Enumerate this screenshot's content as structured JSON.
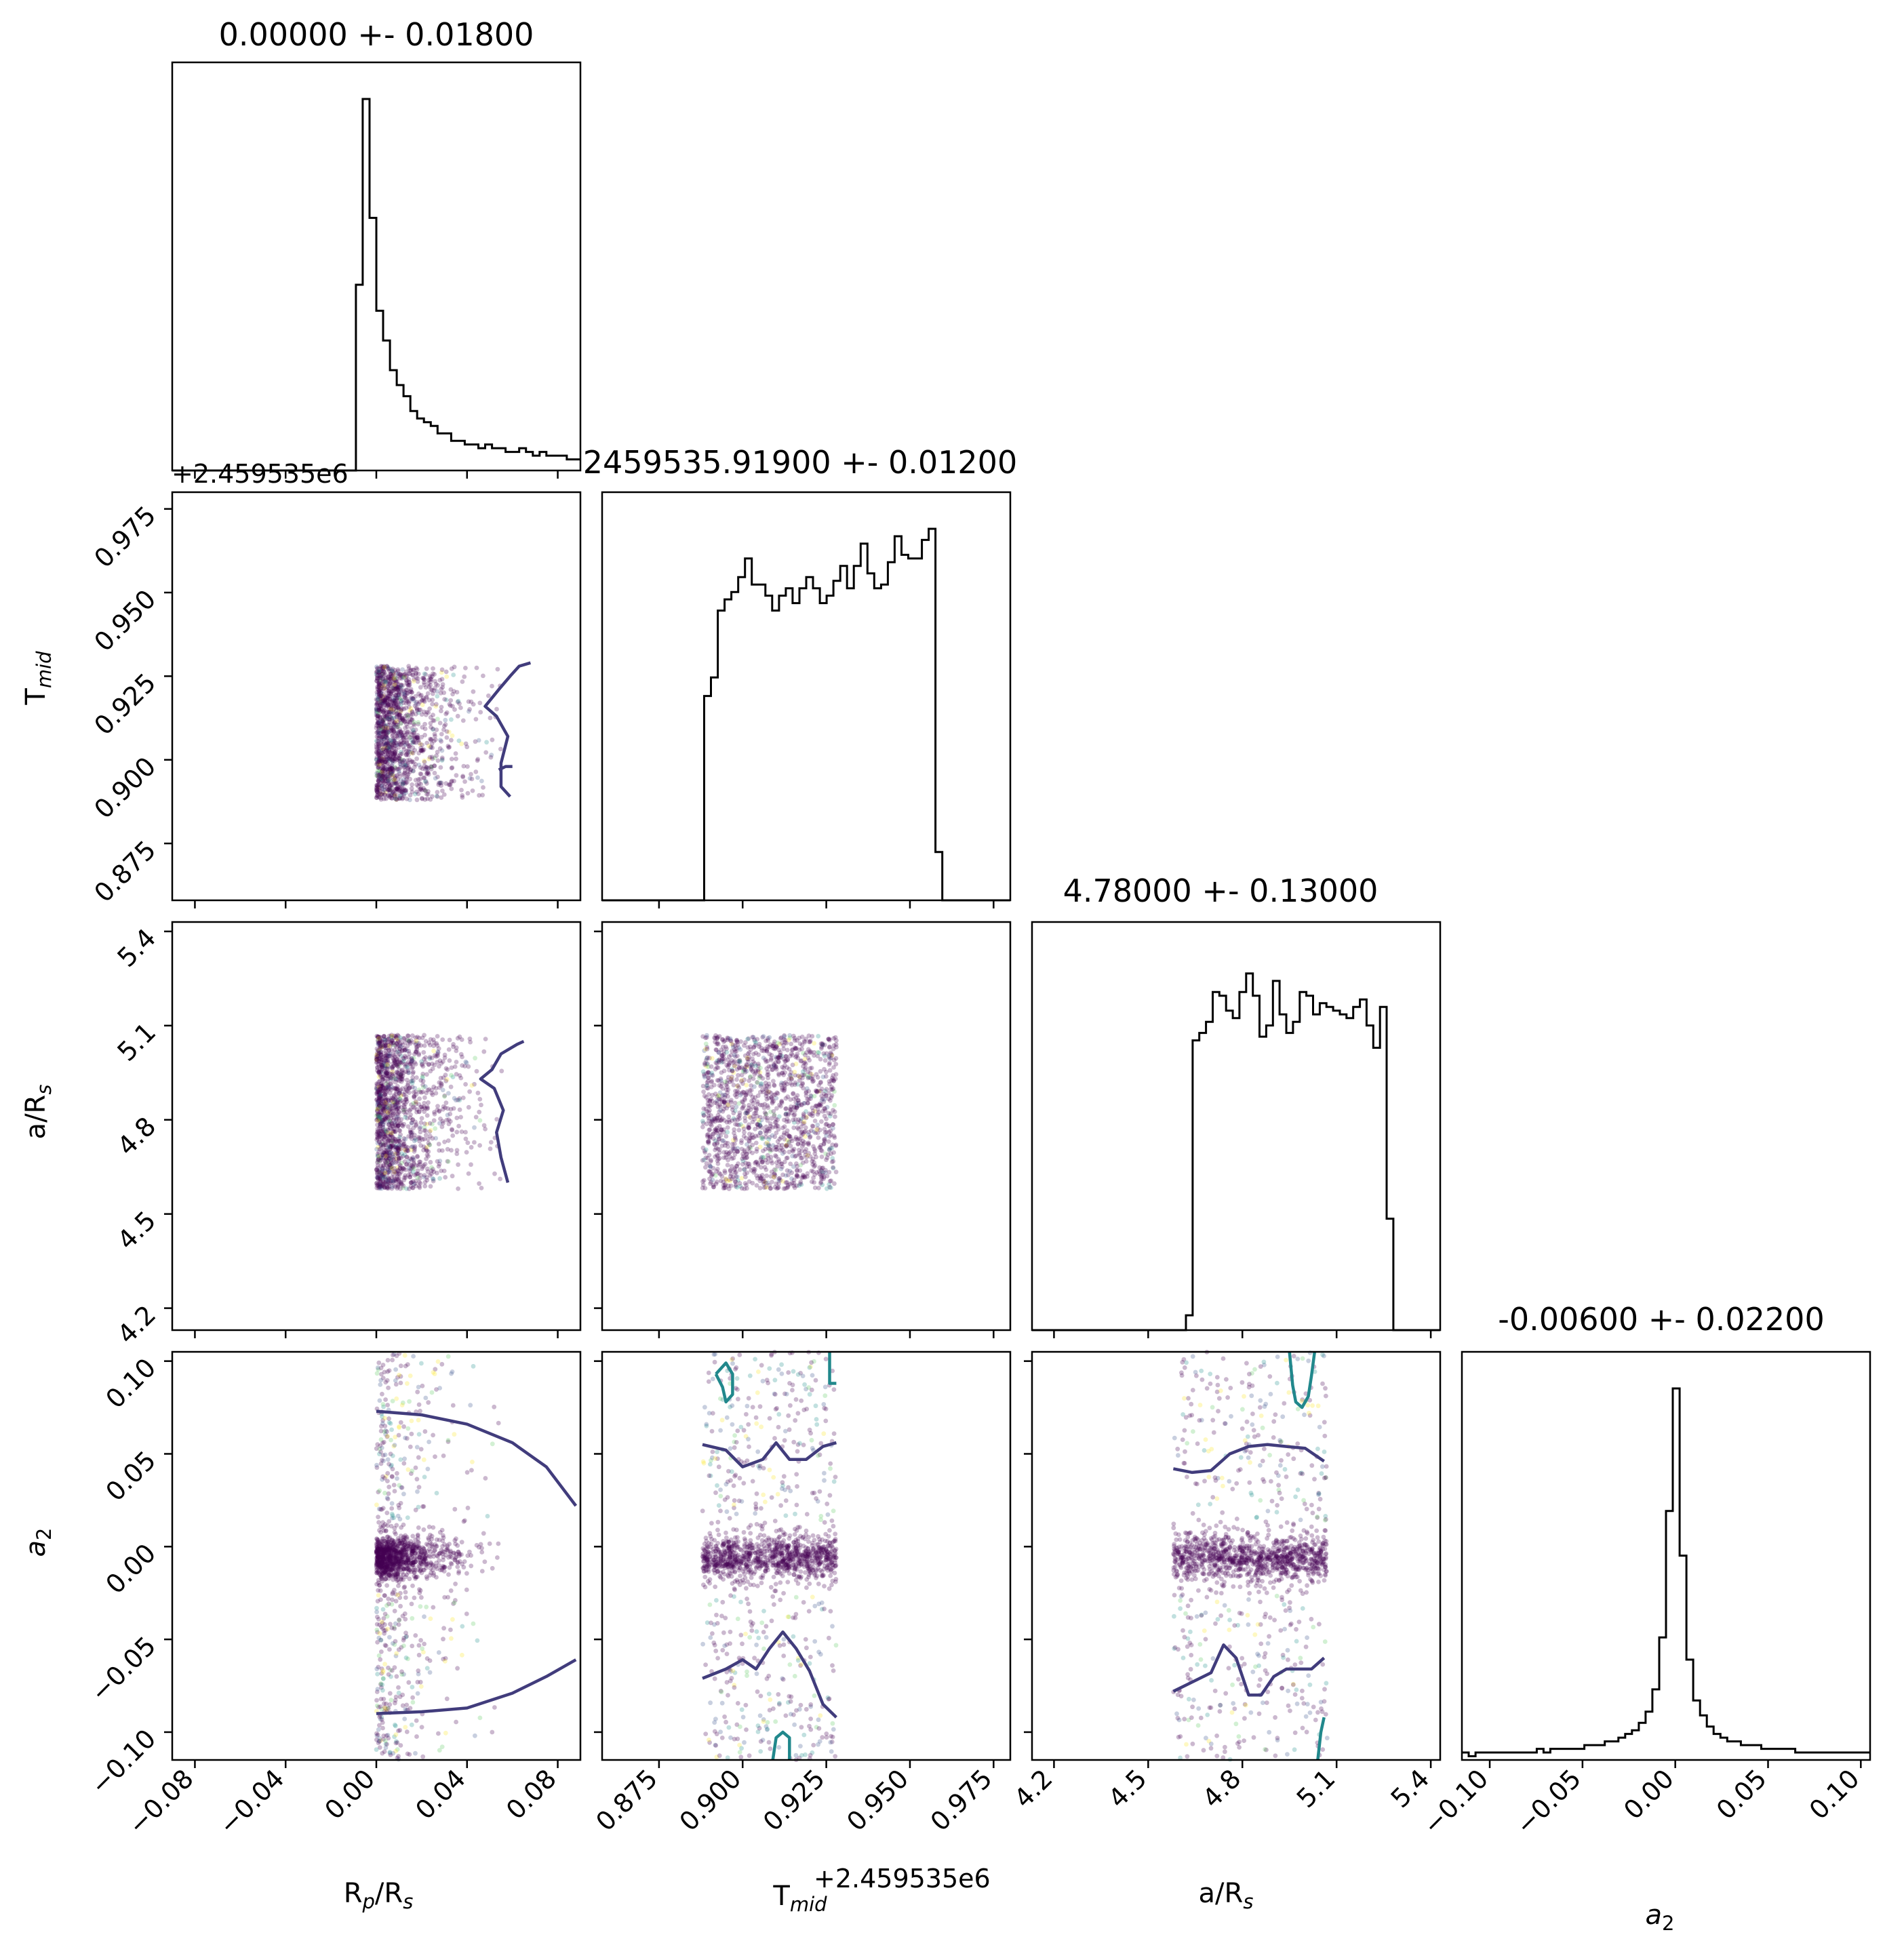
{
  "chart_data": {
    "type": "scatter",
    "parameters": [
      {
        "id": "rp",
        "label": "R",
        "sub_a": "p",
        "mid": "/R",
        "sub_b": "s",
        "title": "0.00000 +- 0.01800",
        "range": [
          -0.09,
          0.09
        ],
        "ticks": [
          -0.08,
          -0.04,
          0.0,
          0.04,
          0.08
        ],
        "tick_labels": [
          "−0.08",
          "−0.04",
          "0.00",
          "0.04",
          "0.08"
        ]
      },
      {
        "id": "tmid",
        "label": "T",
        "sub_a": "mid",
        "mid": "",
        "sub_b": "",
        "title": "2459535.91900 +- 0.01200",
        "range": [
          0.858,
          0.98
        ],
        "ticks": [
          0.875,
          0.9,
          0.925,
          0.95,
          0.975
        ],
        "tick_labels": [
          "0.875",
          "0.900",
          "0.925",
          "0.950",
          "0.975"
        ],
        "offset": "+2.459535e6"
      },
      {
        "id": "ars",
        "label": "a/R",
        "sub_a": "s",
        "mid": "",
        "sub_b": "",
        "title": "4.78000 +- 0.13000",
        "range": [
          4.13,
          5.43
        ],
        "ticks": [
          4.2,
          4.5,
          4.8,
          5.1,
          5.4
        ],
        "tick_labels": [
          "4.2",
          "4.5",
          "4.8",
          "5.1",
          "5.4"
        ]
      },
      {
        "id": "a2",
        "label": "a",
        "sub_a": "2",
        "mid": "",
        "sub_b": "",
        "title": "-0.00600 +- 0.02200",
        "range": [
          -0.115,
          0.105
        ],
        "ticks": [
          -0.1,
          -0.05,
          0.0,
          0.05,
          0.1
        ],
        "tick_labels": [
          "−0.10",
          "−0.05",
          "0.00",
          "0.05",
          "0.10"
        ]
      }
    ],
    "hist_heights": {
      "rp": [
        0,
        0,
        0,
        0,
        0,
        0,
        0,
        0,
        0,
        0,
        0,
        0,
        0,
        0,
        0,
        0,
        0,
        0,
        0,
        0,
        0,
        0,
        0,
        0,
        0,
        0,
        0,
        0.5,
        1.0,
        0.68,
        0.43,
        0.35,
        0.27,
        0.23,
        0.2,
        0.16,
        0.14,
        0.13,
        0.12,
        0.1,
        0.1,
        0.08,
        0.08,
        0.07,
        0.07,
        0.06,
        0.07,
        0.06,
        0.06,
        0.05,
        0.05,
        0.06,
        0.05,
        0.04,
        0.05,
        0.04,
        0.04,
        0.04,
        0.03,
        0.03
      ],
      "tmid": [
        0,
        0,
        0,
        0,
        0,
        0,
        0,
        0,
        0,
        0,
        0,
        0,
        0,
        0,
        0,
        0.55,
        0.6,
        0.78,
        0.81,
        0.83,
        0.87,
        0.92,
        0.85,
        0.85,
        0.82,
        0.78,
        0.82,
        0.84,
        0.8,
        0.84,
        0.87,
        0.84,
        0.8,
        0.82,
        0.86,
        0.9,
        0.84,
        0.9,
        0.96,
        0.88,
        0.84,
        0.85,
        0.91,
        0.98,
        0.93,
        0.92,
        0.92,
        0.97,
        1.0,
        0.13,
        0,
        0,
        0,
        0,
        0,
        0,
        0,
        0,
        0,
        0
      ],
      "ars": [
        0,
        0,
        0,
        0,
        0,
        0,
        0,
        0,
        0,
        0,
        0,
        0,
        0,
        0,
        0,
        0,
        0,
        0,
        0,
        0,
        0,
        0,
        0,
        0.04,
        0.78,
        0.8,
        0.83,
        0.91,
        0.9,
        0.86,
        0.84,
        0.91,
        0.96,
        0.9,
        0.79,
        0.82,
        0.94,
        0.85,
        0.8,
        0.83,
        0.91,
        0.9,
        0.85,
        0.88,
        0.87,
        0.86,
        0.85,
        0.84,
        0.87,
        0.89,
        0.82,
        0.76,
        0.87,
        0.3,
        0,
        0,
        0,
        0,
        0,
        0,
        0
      ],
      "a2": [
        0.02,
        0.01,
        0.02,
        0.02,
        0.02,
        0.02,
        0.02,
        0.02,
        0.02,
        0.02,
        0.02,
        0.03,
        0.02,
        0.03,
        0.03,
        0.03,
        0.03,
        0.03,
        0.04,
        0.04,
        0.04,
        0.05,
        0.05,
        0.06,
        0.07,
        0.08,
        0.1,
        0.13,
        0.19,
        0.33,
        0.67,
        1.0,
        0.55,
        0.27,
        0.16,
        0.12,
        0.09,
        0.07,
        0.06,
        0.05,
        0.05,
        0.04,
        0.04,
        0.04,
        0.03,
        0.03,
        0.03,
        0.03,
        0.03,
        0.02,
        0.02,
        0.02,
        0.02,
        0.02,
        0.02,
        0.02,
        0.02,
        0.02,
        0.02,
        0.02
      ]
    },
    "contours": {
      "rp_tmid": [
        [
          [
            0.059,
            0.889
          ],
          [
            0.055,
            0.892
          ],
          [
            0.055,
            0.899
          ],
          [
            0.058,
            0.907
          ],
          [
            0.053,
            0.913
          ],
          [
            0.048,
            0.916
          ],
          [
            0.054,
            0.921
          ],
          [
            0.059,
            0.925
          ],
          [
            0.063,
            0.928
          ],
          [
            0.068,
            0.929
          ]
        ],
        [
          [
            0.054,
            0.897
          ],
          [
            0.057,
            0.898
          ],
          [
            0.06,
            0.898
          ]
        ]
      ],
      "rp_ars": [
        [
          [
            0.058,
            4.6
          ],
          [
            0.055,
            4.68
          ],
          [
            0.053,
            4.76
          ],
          [
            0.056,
            4.83
          ],
          [
            0.052,
            4.9
          ],
          [
            0.046,
            4.93
          ],
          [
            0.051,
            4.96
          ],
          [
            0.055,
            5.01
          ],
          [
            0.062,
            5.04
          ],
          [
            0.065,
            5.05
          ]
        ]
      ],
      "rp_a2": [
        [
          [
            0.0,
            0.073
          ],
          [
            0.02,
            0.071
          ],
          [
            0.04,
            0.066
          ],
          [
            0.06,
            0.056
          ],
          [
            0.075,
            0.043
          ],
          [
            0.088,
            0.022
          ]
        ],
        [
          [
            0.0,
            -0.09
          ],
          [
            0.02,
            -0.089
          ],
          [
            0.04,
            -0.087
          ],
          [
            0.06,
            -0.079
          ],
          [
            0.075,
            -0.07
          ],
          [
            0.088,
            -0.061
          ]
        ]
      ],
      "tmid_a2": [
        [
          [
            0.888,
            0.055
          ],
          [
            0.895,
            0.052
          ],
          [
            0.9,
            0.043
          ],
          [
            0.906,
            0.047
          ],
          [
            0.91,
            0.056
          ],
          [
            0.914,
            0.047
          ],
          [
            0.919,
            0.047
          ],
          [
            0.924,
            0.054
          ],
          [
            0.928,
            0.056
          ]
        ],
        [
          [
            0.888,
            -0.071
          ],
          [
            0.895,
            -0.066
          ],
          [
            0.9,
            -0.061
          ],
          [
            0.904,
            -0.066
          ],
          [
            0.908,
            -0.055
          ],
          [
            0.912,
            -0.046
          ],
          [
            0.916,
            -0.055
          ],
          [
            0.92,
            -0.067
          ],
          [
            0.924,
            -0.085
          ],
          [
            0.928,
            -0.092
          ]
        ]
      ],
      "tmid_a2_outer": [
        [
          [
            0.892,
            0.093
          ],
          [
            0.894,
            0.086
          ],
          [
            0.895,
            0.078
          ],
          [
            0.897,
            0.082
          ],
          [
            0.897,
            0.093
          ],
          [
            0.895,
            0.099
          ],
          [
            0.892,
            0.093
          ]
        ],
        [
          [
            0.926,
            0.105
          ],
          [
            0.926,
            0.088
          ],
          [
            0.928,
            0.088
          ]
        ],
        [
          [
            0.909,
            -0.115
          ],
          [
            0.91,
            -0.103
          ],
          [
            0.912,
            -0.1
          ],
          [
            0.914,
            -0.103
          ],
          [
            0.914,
            -0.115
          ]
        ]
      ],
      "ars_a2": [
        [
          [
            4.58,
            0.042
          ],
          [
            4.64,
            0.04
          ],
          [
            4.7,
            0.041
          ],
          [
            4.76,
            0.05
          ],
          [
            4.82,
            0.054
          ],
          [
            4.88,
            0.055
          ],
          [
            4.94,
            0.054
          ],
          [
            5.0,
            0.053
          ],
          [
            5.06,
            0.046
          ]
        ],
        [
          [
            4.58,
            -0.078
          ],
          [
            4.64,
            -0.073
          ],
          [
            4.7,
            -0.068
          ],
          [
            4.74,
            -0.053
          ],
          [
            4.78,
            -0.06
          ],
          [
            4.82,
            -0.08
          ],
          [
            4.86,
            -0.08
          ],
          [
            4.9,
            -0.07
          ],
          [
            4.94,
            -0.066
          ],
          [
            4.98,
            -0.066
          ],
          [
            5.02,
            -0.066
          ],
          [
            5.06,
            -0.06
          ]
        ]
      ],
      "ars_a2_outer": [
        [
          [
            4.95,
            0.105
          ],
          [
            4.96,
            0.087
          ],
          [
            4.97,
            0.078
          ],
          [
            4.99,
            0.075
          ],
          [
            5.01,
            0.081
          ],
          [
            5.02,
            0.092
          ],
          [
            5.03,
            0.105
          ]
        ],
        [
          [
            5.04,
            -0.115
          ],
          [
            5.05,
            -0.1
          ],
          [
            5.06,
            -0.092
          ]
        ]
      ]
    },
    "colors": {
      "contour_inner": "#413c7c",
      "contour_outer": "#21888c",
      "points": [
        "#440154",
        "#3b528b",
        "#21918c",
        "#5ec962",
        "#fde725"
      ],
      "hist": "#000000",
      "frame": "#000000"
    }
  }
}
